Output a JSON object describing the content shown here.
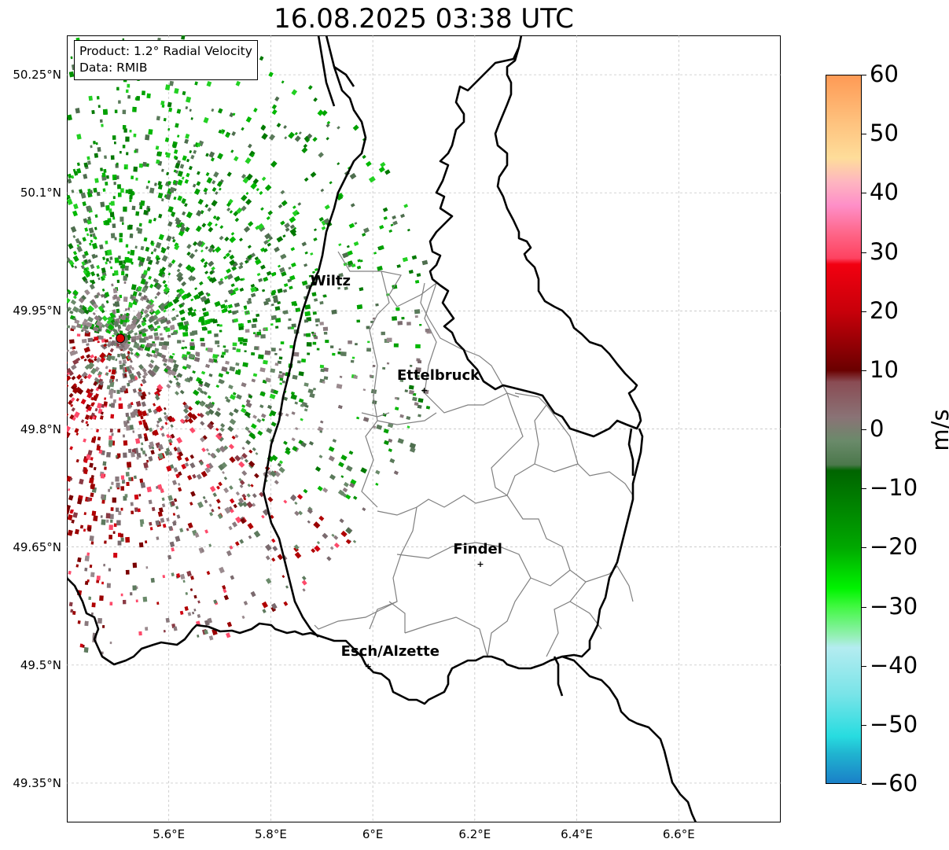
{
  "title": "16.08.2025 03:38 UTC",
  "info": {
    "line1": "Product: 1.2° Radial Velocity",
    "line2": "Data: RMIB"
  },
  "axes": {
    "lat_labels": [
      "50.25°N",
      "50.1°N",
      "49.95°N",
      "49.8°N",
      "49.65°N",
      "49.5°N",
      "49.35°N"
    ],
    "lon_labels": [
      "5.6°E",
      "5.8°E",
      "6°E",
      "6.2°E",
      "6.4°E",
      "6.6°E"
    ],
    "lat_values": [
      50.25,
      50.1,
      49.95,
      49.8,
      49.65,
      49.5,
      49.35
    ],
    "lon_values": [
      5.6,
      5.8,
      6.0,
      6.2,
      6.4,
      6.6
    ],
    "lon_range": [
      5.4,
      6.8
    ],
    "lat_range": [
      49.3,
      50.3
    ],
    "grid": true
  },
  "cities": [
    {
      "name": "Wiltz",
      "lon": 5.93,
      "lat": 49.97,
      "marker": false
    },
    {
      "name": "Ettelbruck",
      "lon": 6.1,
      "lat": 49.85,
      "marker": true
    },
    {
      "name": "Findel",
      "lon": 6.21,
      "lat": 49.63,
      "marker": true
    },
    {
      "name": "Esch/Alzette",
      "lon": 5.99,
      "lat": 49.5,
      "marker": true
    }
  ],
  "radar_site": {
    "lon": 5.505,
    "lat": 49.915,
    "color": "#e00000"
  },
  "colorbar": {
    "unit": "m/s",
    "ticks": [
      "60",
      "50",
      "40",
      "30",
      "20",
      "10",
      "0",
      "−10",
      "−20",
      "−30",
      "−40",
      "−50",
      "−60"
    ],
    "range": [
      -60,
      60
    ],
    "stops": [
      {
        "v": 60,
        "c": "#fe9a55"
      },
      {
        "v": 52,
        "c": "#fec27e"
      },
      {
        "v": 46,
        "c": "#fedd9a"
      },
      {
        "v": 42,
        "c": "#feb6c0"
      },
      {
        "v": 38,
        "c": "#fe8fc8"
      },
      {
        "v": 33,
        "c": "#fe6486"
      },
      {
        "v": 29,
        "c": "#fe4260"
      },
      {
        "v": 28,
        "c": "#f20010"
      },
      {
        "v": 20,
        "c": "#c8000a"
      },
      {
        "v": 10,
        "c": "#6a0000"
      },
      {
        "v": 8,
        "c": "#8a4c54"
      },
      {
        "v": 2,
        "c": "#8a7376"
      },
      {
        "v": -2,
        "c": "#6a8a6a"
      },
      {
        "v": -6,
        "c": "#4c784c"
      },
      {
        "v": -7,
        "c": "#006400"
      },
      {
        "v": -20,
        "c": "#00a800"
      },
      {
        "v": -27,
        "c": "#00f400"
      },
      {
        "v": -30,
        "c": "#40f840"
      },
      {
        "v": -35,
        "c": "#94f0b4"
      },
      {
        "v": -37,
        "c": "#b4ecf0"
      },
      {
        "v": -45,
        "c": "#78e4e8"
      },
      {
        "v": -52,
        "c": "#28dce0"
      },
      {
        "v": -55,
        "c": "#20b4d0"
      },
      {
        "v": -60,
        "c": "#1a80c8"
      }
    ]
  },
  "colors": {
    "approach_green": "#00a000",
    "away_red": "#a00000",
    "near_zero": "#8a7a7e",
    "border": "#000000",
    "canton_lines": "#808080"
  }
}
